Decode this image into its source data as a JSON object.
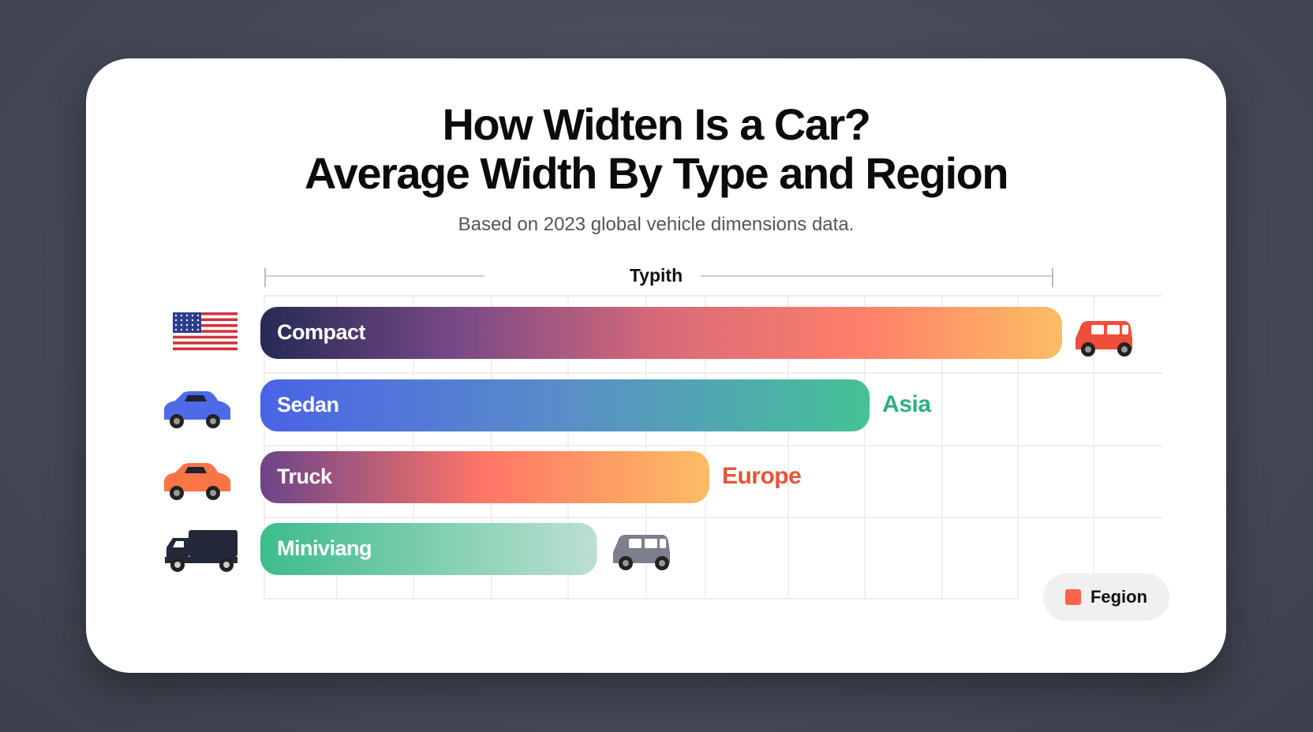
{
  "chart_data": {
    "type": "bar",
    "orientation": "horizontal",
    "title": [
      "How Widten Is a Car?",
      "Average Width By Type and Region"
    ],
    "subtitle": "Based on 2023 global vehicle dimensions data.",
    "axis_title": "Typith",
    "categories": [
      "Compact",
      "Sedan",
      "Truck",
      "Miniviang"
    ],
    "values": [
      100,
      76,
      56,
      42
    ],
    "value_note_scale": "relative (no numeric axis printed)",
    "region_labels": [
      "",
      "Asia",
      "Europe",
      ""
    ],
    "region_label_colors": [
      "",
      "#2bb07f",
      "#e4553a",
      ""
    ],
    "left_icons": [
      "us-flag-icon",
      "blue-sedan-icon",
      "orange-car-icon",
      "delivery-truck-icon"
    ],
    "right_icons": [
      "red-suv-icon",
      "",
      "",
      "gray-minivan-icon"
    ],
    "bar_gradients": [
      [
        "#262a55",
        "#7a4a86",
        "#d86a78",
        "#ff7f6a",
        "#fbbd63"
      ],
      [
        "#4a63e6",
        "#5a8ec8",
        "#45c296"
      ],
      [
        "#6c4489",
        "#ff7667",
        "#fbbd63"
      ],
      [
        "#3dbc8a",
        "#bce0d2"
      ]
    ],
    "grid": true,
    "legend": {
      "position": "bottom-right",
      "entries": [
        {
          "label": "Fegion",
          "color": "#fa6448"
        }
      ]
    }
  }
}
